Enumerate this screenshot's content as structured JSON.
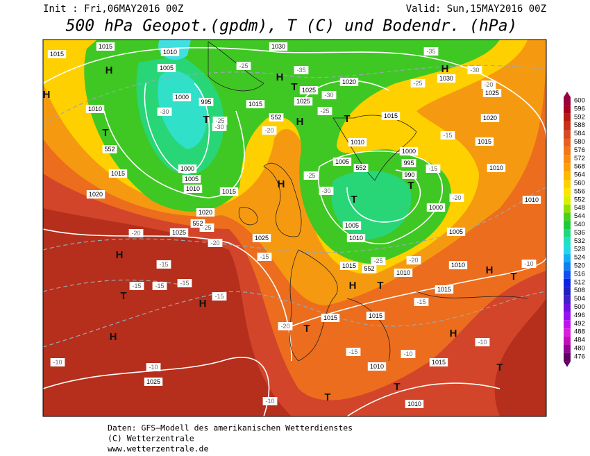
{
  "header": {
    "init": "Init : Fri,06MAY2016 00Z",
    "valid": "Valid: Sun,15MAY2016 00Z",
    "title": "500 hPa Geopot.(gpdm), T (C) und Bodendr. (hPa)"
  },
  "colorbar": {
    "labels": [
      "600",
      "596",
      "592",
      "588",
      "584",
      "580",
      "576",
      "572",
      "568",
      "564",
      "560",
      "556",
      "552",
      "548",
      "544",
      "540",
      "536",
      "532",
      "528",
      "524",
      "520",
      "516",
      "512",
      "508",
      "504",
      "500",
      "496",
      "492",
      "488",
      "484",
      "480",
      "476"
    ]
  },
  "map_labels": {
    "isobars": [
      "1015",
      "1015",
      "1010",
      "1005",
      "1000",
      "995",
      "1015",
      "1000",
      "1005",
      "1010",
      "1015",
      "1020",
      "1025",
      "1015",
      "1020",
      "1010",
      "1030",
      "1025",
      "1025",
      "1020",
      "1030",
      "1025",
      "1020",
      "1015",
      "1015",
      "1010",
      "1010",
      "1005",
      "1000",
      "995",
      "990",
      "1000",
      "1005",
      "1010",
      "1005",
      "1010",
      "1025",
      "1015",
      "1010",
      "1015",
      "1010",
      "1015",
      "1015",
      "1010",
      "1015",
      "1010",
      "1025"
    ],
    "temperatures": [
      "-25",
      "-35",
      "-30",
      "-25",
      "-20",
      "-25",
      "-30",
      "-30",
      "-35",
      "-30",
      "-25",
      "-20",
      "-15",
      "-15",
      "-20",
      "-25",
      "-30",
      "-25",
      "-20",
      "-20",
      "-15",
      "-15",
      "-15",
      "-15",
      "-15",
      "-15",
      "-20",
      "-15",
      "-10",
      "-15",
      "-20",
      "-25",
      "-10",
      "-10",
      "-10",
      "-10",
      "-10"
    ],
    "contour_552": [
      "552",
      "552",
      "552",
      "552",
      "552"
    ],
    "pressure_centers": [
      "H",
      "H",
      "T",
      "H",
      "H",
      "T",
      "H",
      "T",
      "T",
      "T",
      "H",
      "T",
      "H",
      "T",
      "H",
      "H",
      "H",
      "T",
      "T",
      "T",
      "T",
      "H",
      "H",
      "T",
      "T"
    ]
  },
  "footer": {
    "source": "Daten: GFS–Modell des amerikanischen Wetterdienstes",
    "copyright": "(C) Wetterzentrale",
    "url": "www.wetterzentrale.de"
  }
}
